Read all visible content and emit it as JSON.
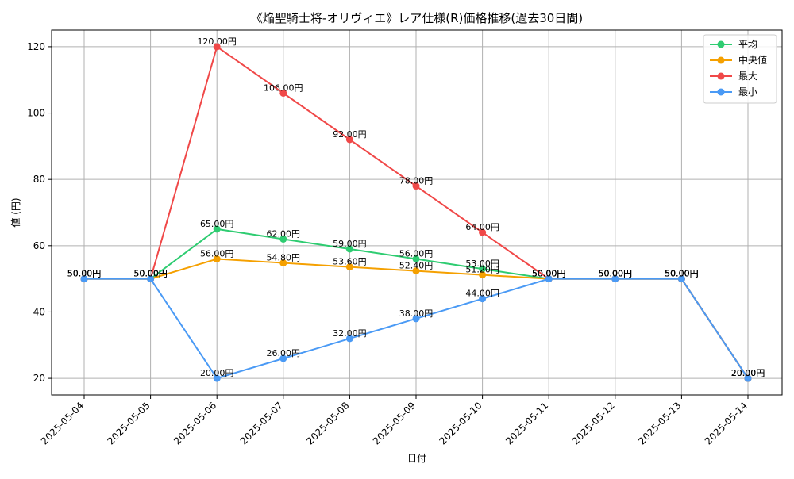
{
  "chart_data": {
    "type": "line",
    "title": "《焔聖騎士将-オリヴィエ》レア仕様(R)価格推移(過去30日間)",
    "xlabel": "日付",
    "ylabel": "値 (円)",
    "x": [
      "2025-05-04",
      "2025-05-05",
      "2025-05-06",
      "2025-05-07",
      "2025-05-08",
      "2025-05-09",
      "2025-05-10",
      "2025-05-11",
      "2025-05-12",
      "2025-05-13",
      "2025-05-14"
    ],
    "ylim": [
      15,
      125
    ],
    "yticks": [
      20,
      40,
      60,
      80,
      100,
      120
    ],
    "grid": true,
    "legend_position": "top-right",
    "value_suffix": "円",
    "series": [
      {
        "name": "平均",
        "color": "#2ecc71",
        "values": [
          50,
          50,
          65,
          62,
          59,
          56,
          53,
          50,
          50,
          50,
          20
        ]
      },
      {
        "name": "中央値",
        "color": "#f5a000",
        "values": [
          50,
          50,
          56,
          54.8,
          53.6,
          52.4,
          51.2,
          50,
          50,
          50,
          20
        ]
      },
      {
        "name": "最大",
        "color": "#f04848",
        "values": [
          50,
          50,
          120,
          106,
          92,
          78,
          64,
          50,
          50,
          50,
          20
        ]
      },
      {
        "name": "最小",
        "color": "#4a9af5",
        "values": [
          50,
          50,
          20,
          26,
          32,
          38,
          44,
          50,
          50,
          50,
          20
        ]
      }
    ]
  }
}
